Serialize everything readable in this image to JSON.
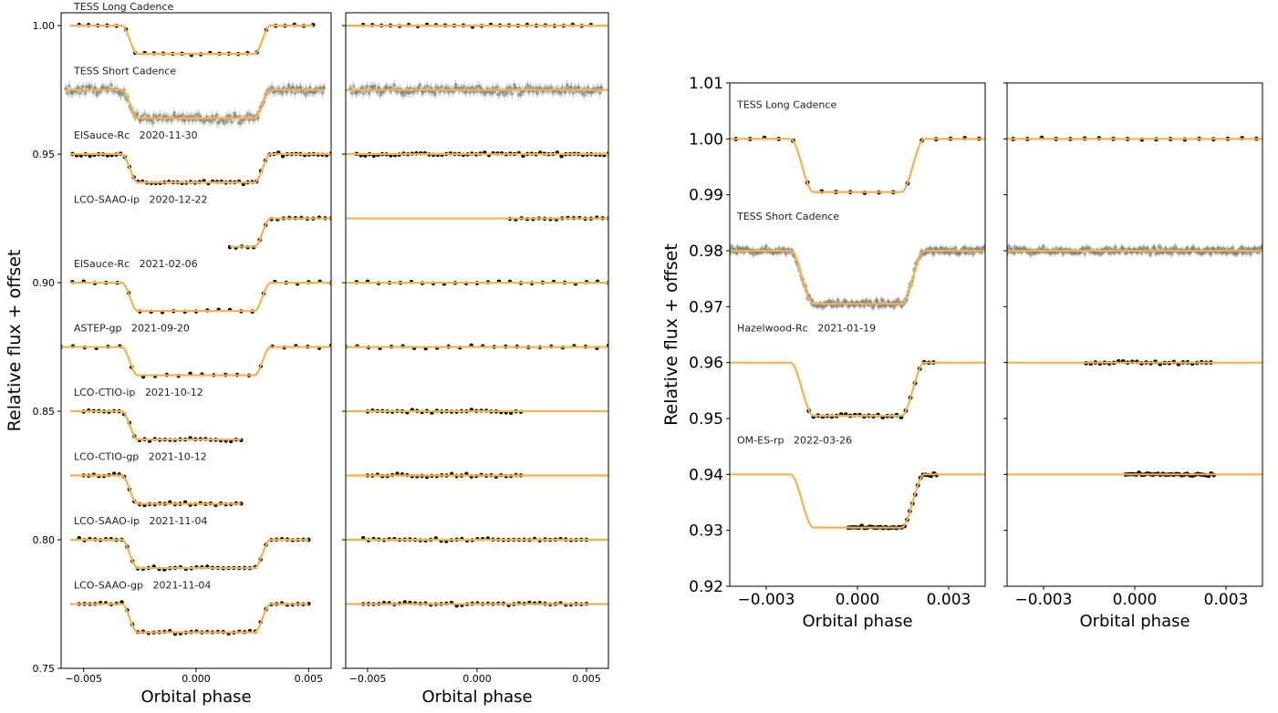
{
  "colors": {
    "model": "#f5b14c",
    "points": "#000000",
    "short_cadence_points": "#7a7a7a"
  },
  "chart_data": [
    {
      "type": "scatter",
      "panel": "left-figure-lightcurves",
      "xlabel": "Orbital phase",
      "ylabel": "Relative flux + offset",
      "xlim": [
        -0.006,
        0.006
      ],
      "ylim": [
        0.75,
        1.005
      ],
      "xticks": [
        "-0.005",
        "0.000",
        "0.005"
      ],
      "yticks": [
        "0.75",
        "0.80",
        "0.85",
        "0.90",
        "0.95",
        "1.00"
      ],
      "grid": false,
      "transit": {
        "depth_fraction": 0.011,
        "half_duration": 0.0033,
        "ingress": 0.0007
      },
      "series": [
        {
          "label": "TESS Long Cadence",
          "baseline": 1.0,
          "x_range": [
            -0.0052,
            0.0052
          ],
          "n_points": 26,
          "dense": false
        },
        {
          "label": "TESS Short Cadence",
          "baseline": 0.975,
          "x_range": [
            -0.0058,
            0.0057
          ],
          "n_points": 220,
          "dense": true
        },
        {
          "label": "ElSauce-Rc   2020-11-30",
          "baseline": 0.95,
          "x_range": [
            -0.0055,
            0.006
          ],
          "n_points": 60,
          "dense": false
        },
        {
          "label": "LCO-SAAO-ip   2020-12-22",
          "baseline": 0.925,
          "x_range": [
            0.0015,
            0.006
          ],
          "n_points": 18,
          "dense": false
        },
        {
          "label": "ElSauce-Rc   2021-02-06",
          "baseline": 0.9,
          "x_range": [
            -0.0055,
            0.006
          ],
          "n_points": 24,
          "dense": false
        },
        {
          "label": "ASTEP-gp   2021-09-20",
          "baseline": 0.875,
          "x_range": [
            -0.006,
            0.006
          ],
          "n_points": 24,
          "dense": false
        },
        {
          "label": "LCO-CTIO-ip   2021-10-12",
          "baseline": 0.85,
          "x_range": [
            -0.005,
            0.002
          ],
          "n_points": 32,
          "dense": false
        },
        {
          "label": "LCO-CTIO-gp   2021-10-12",
          "baseline": 0.825,
          "x_range": [
            -0.005,
            0.002
          ],
          "n_points": 32,
          "dense": false
        },
        {
          "label": "LCO-SAAO-ip   2021-11-04",
          "baseline": 0.8,
          "x_range": [
            -0.0052,
            0.005
          ],
          "n_points": 44,
          "dense": false
        },
        {
          "label": "LCO-SAAO-gp   2021-11-04",
          "baseline": 0.775,
          "x_range": [
            -0.0052,
            0.005
          ],
          "n_points": 44,
          "dense": false
        }
      ]
    },
    {
      "type": "scatter",
      "panel": "left-figure-residuals",
      "xlabel": "Orbital phase",
      "xlim": [
        -0.006,
        0.006
      ],
      "ylim": [
        0.75,
        1.005
      ],
      "xticks": [
        "-0.005",
        "0.000",
        "0.005"
      ],
      "grid": false,
      "residuals_of": "left-figure-lightcurves"
    },
    {
      "type": "scatter",
      "panel": "right-figure-lightcurves",
      "xlabel": "Orbital phase",
      "ylabel": "Relative flux + offset",
      "xlim": [
        -0.0042,
        0.0042
      ],
      "ylim": [
        0.92,
        1.01
      ],
      "xticks": [
        "-0.003",
        "0.000",
        "0.003"
      ],
      "yticks": [
        "0.92",
        "0.93",
        "0.94",
        "0.95",
        "0.96",
        "0.97",
        "0.98",
        "0.99",
        "1.00",
        "1.01"
      ],
      "grid": false,
      "transit": {
        "depth_fraction": 0.0095,
        "half_duration": 0.0022,
        "ingress": 0.00075
      },
      "series": [
        {
          "label": "TESS Long Cadence",
          "baseline": 1.0,
          "x_range": [
            -0.004,
            0.004
          ],
          "n_points": 18,
          "dense": false
        },
        {
          "label": "TESS Short Cadence",
          "baseline": 0.98,
          "x_range": [
            -0.0042,
            0.0042
          ],
          "n_points": 260,
          "dense": true
        },
        {
          "label": "Hazelwood-Rc   2021-01-19",
          "baseline": 0.96,
          "x_range": [
            -0.0016,
            0.0025
          ],
          "n_points": 28,
          "dense": false
        },
        {
          "label": "OM-ES-rp   2022-03-26",
          "baseline": 0.94,
          "x_range": [
            -0.0003,
            0.0026
          ],
          "n_points": 34,
          "dense": false
        }
      ]
    },
    {
      "type": "scatter",
      "panel": "right-figure-residuals",
      "xlabel": "Orbital phase",
      "xlim": [
        -0.0042,
        0.0042
      ],
      "ylim": [
        0.92,
        1.01
      ],
      "xticks": [
        "-0.003",
        "0.000",
        "0.003"
      ],
      "grid": false,
      "residuals_of": "right-figure-lightcurves"
    }
  ]
}
